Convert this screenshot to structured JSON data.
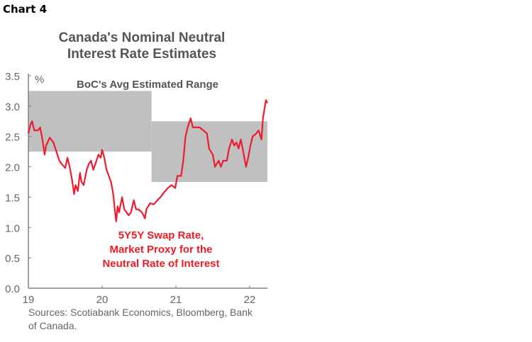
{
  "header": {
    "chart_label": "Chart 4"
  },
  "footer": {
    "sources_line1": "Sources: Scotiabank Economics, Bloomberg, Bank",
    "sources_line2": "of Canada."
  },
  "colors": {
    "line": "#ed1c2e",
    "band": "#c0c0c0",
    "axis": "#808080",
    "annotation": "#ee1c25",
    "text": "#555555"
  },
  "chart_data": {
    "type": "line",
    "title_line1": "Canada's Nominal Neutral",
    "title_line2": "Interest Rate Estimates",
    "ylabel": "%",
    "xlabel": "",
    "ylim": [
      0,
      3.5
    ],
    "xlim": [
      19,
      22.24
    ],
    "yticks": [
      0,
      0.5,
      1,
      1.5,
      2,
      2.5,
      3,
      3.5
    ],
    "ytick_labels": [
      "0.0",
      "0.5",
      "1.0",
      "1.5",
      "2.0",
      "2.5",
      "3.0",
      "3.5"
    ],
    "xticks": [
      19,
      20,
      21,
      22
    ],
    "xtick_labels": [
      "19",
      "20",
      "21",
      "22"
    ],
    "grid": false,
    "bands": [
      {
        "name": "BoC's Avg Estimated Range",
        "x": [
          19,
          20.67
        ],
        "y": [
          2.25,
          3.25
        ]
      },
      {
        "name": "BoC's Avg Estimated Range",
        "x": [
          20.67,
          22.24
        ],
        "y": [
          1.75,
          2.75
        ]
      }
    ],
    "annotations": {
      "band_label": "BoC's Avg Estimated Range",
      "series_label": [
        "5Y5Y Swap Rate,",
        "Market Proxy for the",
        "Neutral Rate of Interest"
      ]
    },
    "series": [
      {
        "name": "5Y5Y Swap Rate",
        "x": [
          19.0,
          19.03,
          19.05,
          19.08,
          19.13,
          19.16,
          19.19,
          19.22,
          19.24,
          19.29,
          19.34,
          19.38,
          19.42,
          19.45,
          19.5,
          19.53,
          19.56,
          19.59,
          19.62,
          19.64,
          19.67,
          19.7,
          19.72,
          19.75,
          19.79,
          19.82,
          19.85,
          19.88,
          19.91,
          19.95,
          19.98,
          20.0,
          20.03,
          20.06,
          20.09,
          20.12,
          20.15,
          20.18,
          20.19,
          20.21,
          20.23,
          20.27,
          20.3,
          20.33,
          20.36,
          20.39,
          20.43,
          20.46,
          20.49,
          20.54,
          20.58,
          20.6,
          20.65,
          20.7,
          20.75,
          20.79,
          20.84,
          20.89,
          20.94,
          20.99,
          21.02,
          21.07,
          21.1,
          21.13,
          21.16,
          21.2,
          21.23,
          21.28,
          21.32,
          21.37,
          21.42,
          21.45,
          21.5,
          21.53,
          21.58,
          21.61,
          21.64,
          21.69,
          21.72,
          21.76,
          21.79,
          21.82,
          21.85,
          21.88,
          21.92,
          21.95,
          21.98,
          22.01,
          22.04,
          22.09,
          22.12,
          22.16,
          22.18,
          22.2,
          22.22,
          22.24
        ],
        "y": [
          2.55,
          2.7,
          2.75,
          2.6,
          2.6,
          2.65,
          2.45,
          2.2,
          2.35,
          2.48,
          2.4,
          2.25,
          2.1,
          2.05,
          1.98,
          2.15,
          2.0,
          1.8,
          1.55,
          1.7,
          1.6,
          1.9,
          1.75,
          1.7,
          1.95,
          2.05,
          2.1,
          1.95,
          2.05,
          2.2,
          2.15,
          2.28,
          2.15,
          1.95,
          1.85,
          1.75,
          1.55,
          1.2,
          1.1,
          1.35,
          1.25,
          1.5,
          1.3,
          1.25,
          1.2,
          1.25,
          1.45,
          1.3,
          1.3,
          1.25,
          1.15,
          1.3,
          1.4,
          1.38,
          1.45,
          1.5,
          1.58,
          1.65,
          1.7,
          1.65,
          1.85,
          1.85,
          2.1,
          2.5,
          2.65,
          2.8,
          2.65,
          2.65,
          2.65,
          2.6,
          2.55,
          2.3,
          2.2,
          2.0,
          2.1,
          2.0,
          2.1,
          2.1,
          2.3,
          2.45,
          2.35,
          2.4,
          2.3,
          2.45,
          2.2,
          2.0,
          2.15,
          2.35,
          2.5,
          2.55,
          2.6,
          2.45,
          2.8,
          2.95,
          3.1,
          3.05
        ]
      }
    ]
  }
}
